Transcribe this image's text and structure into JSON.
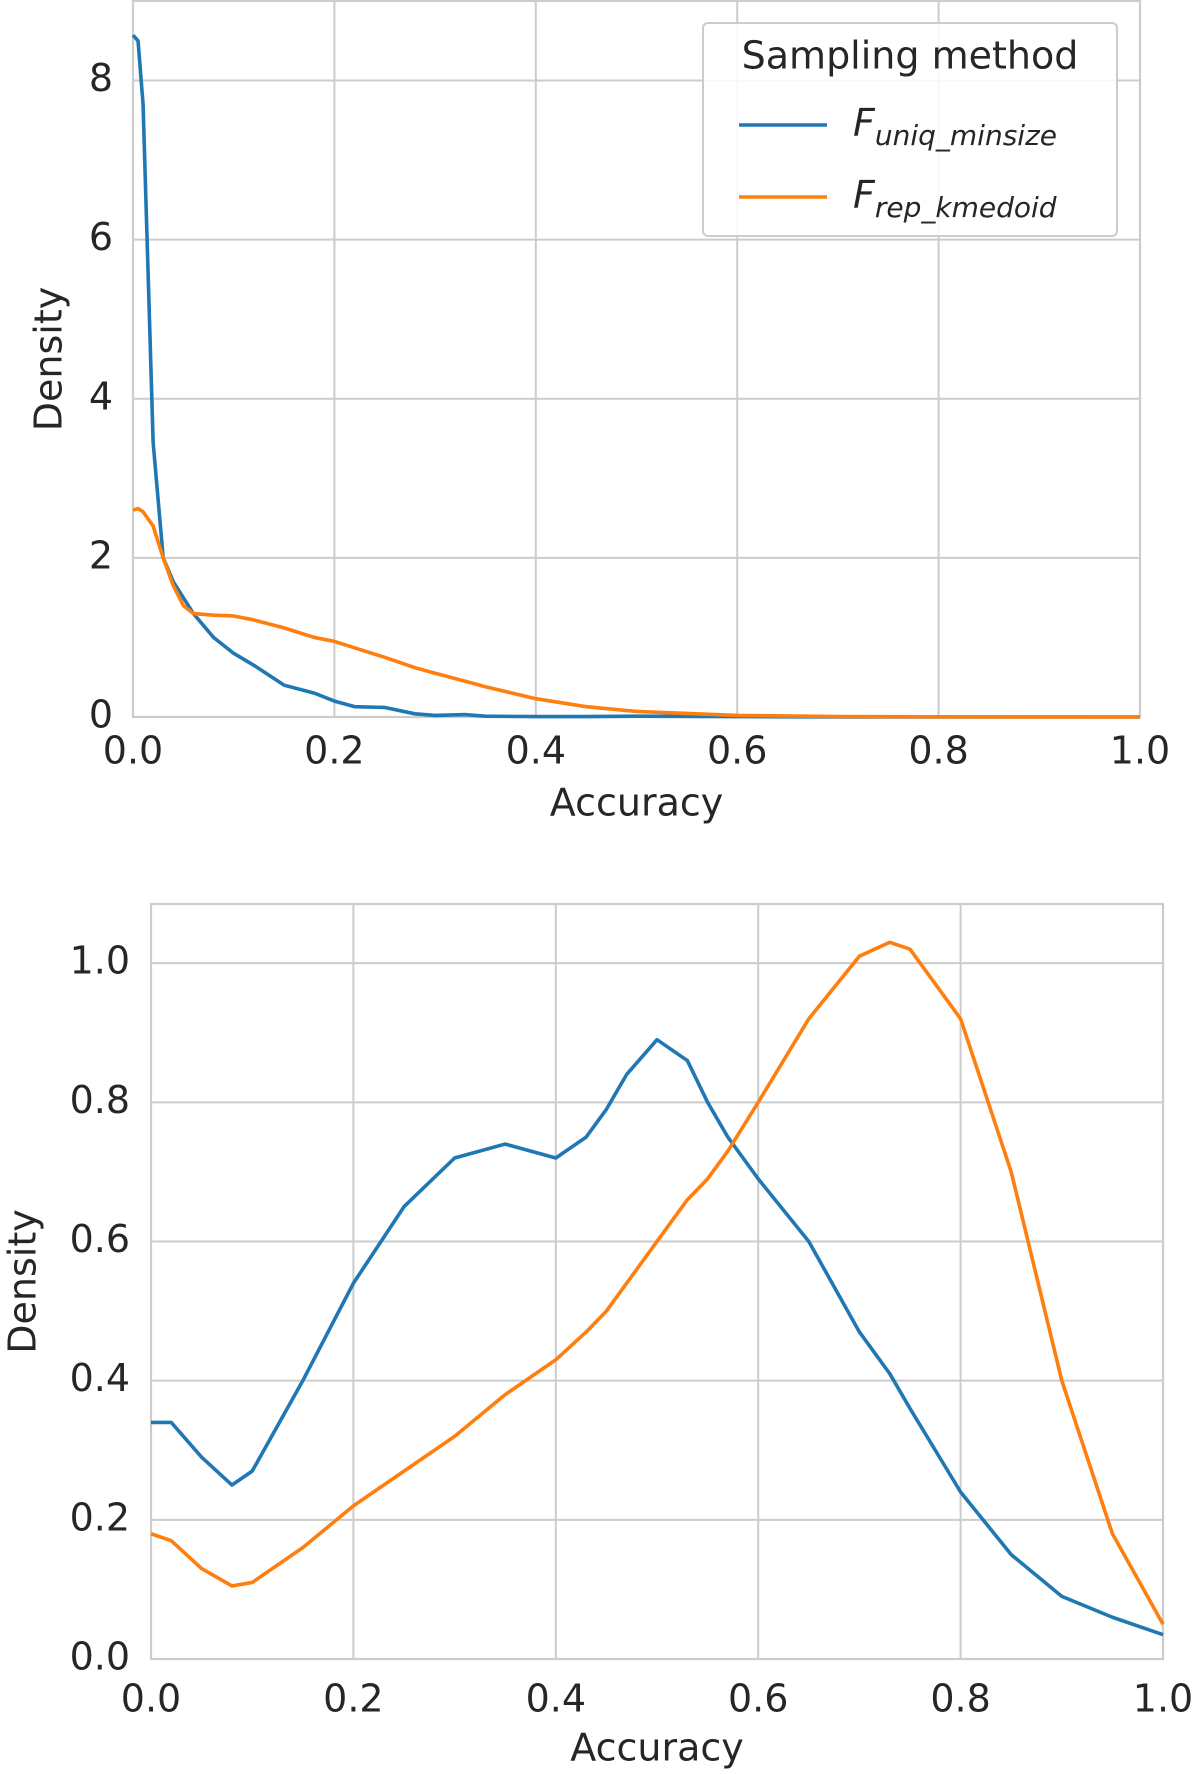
{
  "chart_data": [
    {
      "type": "line",
      "xlabel": "Accuracy",
      "ylabel": "Density",
      "x": [
        0,
        0.005,
        0.01,
        0.02,
        0.03,
        0.04,
        0.05,
        0.06,
        0.08,
        0.1,
        0.12,
        0.15,
        0.18,
        0.2,
        0.22,
        0.25,
        0.28,
        0.3,
        0.33,
        0.35,
        0.4,
        0.45,
        0.5,
        0.6,
        0.7,
        0.8,
        0.9,
        1.0
      ],
      "series": [
        {
          "name": "F",
          "subscript": "uniq_minsize",
          "color": "#1f77b4",
          "values": [
            8.57,
            8.5,
            7.7,
            3.45,
            2.0,
            1.7,
            1.5,
            1.3,
            1.0,
            0.8,
            0.65,
            0.4,
            0.3,
            0.2,
            0.13,
            0.12,
            0.04,
            0.02,
            0.03,
            0.01,
            0.005,
            0.005,
            0.01,
            0.005,
            0,
            0,
            0,
            0
          ]
        },
        {
          "name": "F",
          "subscript": "rep_kmedoid",
          "color": "#ff7f0e",
          "values": [
            2.6,
            2.62,
            2.58,
            2.4,
            2.0,
            1.65,
            1.4,
            1.3,
            1.28,
            1.27,
            1.22,
            1.12,
            1.0,
            0.95,
            0.87,
            0.75,
            0.62,
            0.55,
            0.45,
            0.38,
            0.23,
            0.13,
            0.07,
            0.02,
            0.005,
            0.002,
            0.001,
            0
          ]
        }
      ],
      "xlim": [
        0,
        1.0
      ],
      "ylim": [
        0,
        9
      ],
      "xticks": [
        {
          "value": 0,
          "label": "0.0"
        },
        0.2,
        0.4,
        0.6,
        0.8,
        {
          "value": 1.0,
          "label": "1.0"
        }
      ],
      "yticks": [
        0,
        2,
        4,
        6,
        8
      ],
      "grid": true,
      "legend": "upper right",
      "legend_title": "Sampling method"
    },
    {
      "type": "line",
      "xlabel": "Accuracy",
      "ylabel": "Density",
      "x": [
        0,
        0.02,
        0.05,
        0.08,
        0.1,
        0.15,
        0.2,
        0.25,
        0.3,
        0.35,
        0.4,
        0.43,
        0.45,
        0.47,
        0.5,
        0.53,
        0.55,
        0.57,
        0.6,
        0.65,
        0.7,
        0.73,
        0.75,
        0.8,
        0.85,
        0.9,
        0.95,
        1.0
      ],
      "series": [
        {
          "color": "#1f77b4",
          "values": [
            0.34,
            0.34,
            0.29,
            0.25,
            0.27,
            0.4,
            0.54,
            0.65,
            0.72,
            0.74,
            0.72,
            0.75,
            0.79,
            0.84,
            0.89,
            0.86,
            0.8,
            0.75,
            0.69,
            0.6,
            0.47,
            0.41,
            0.36,
            0.24,
            0.15,
            0.09,
            0.06,
            0.035
          ]
        },
        {
          "color": "#ff7f0e",
          "values": [
            0.18,
            0.17,
            0.13,
            0.105,
            0.11,
            0.16,
            0.22,
            0.27,
            0.32,
            0.38,
            0.43,
            0.47,
            0.5,
            0.54,
            0.6,
            0.66,
            0.69,
            0.73,
            0.8,
            0.92,
            1.01,
            1.03,
            1.02,
            0.92,
            0.7,
            0.4,
            0.18,
            0.05
          ]
        }
      ],
      "xlim": [
        0,
        1.0
      ],
      "ylim": [
        0,
        1.085
      ],
      "xticks": [
        {
          "value": 0,
          "label": "0.0"
        },
        0.2,
        0.4,
        0.6,
        0.8,
        {
          "value": 1.0,
          "label": "1.0"
        }
      ],
      "yticks": [
        {
          "value": 0,
          "label": "0.0"
        },
        0.2,
        0.4,
        0.6,
        0.8,
        {
          "value": 1.0,
          "label": "1.0"
        }
      ],
      "grid": true
    }
  ]
}
